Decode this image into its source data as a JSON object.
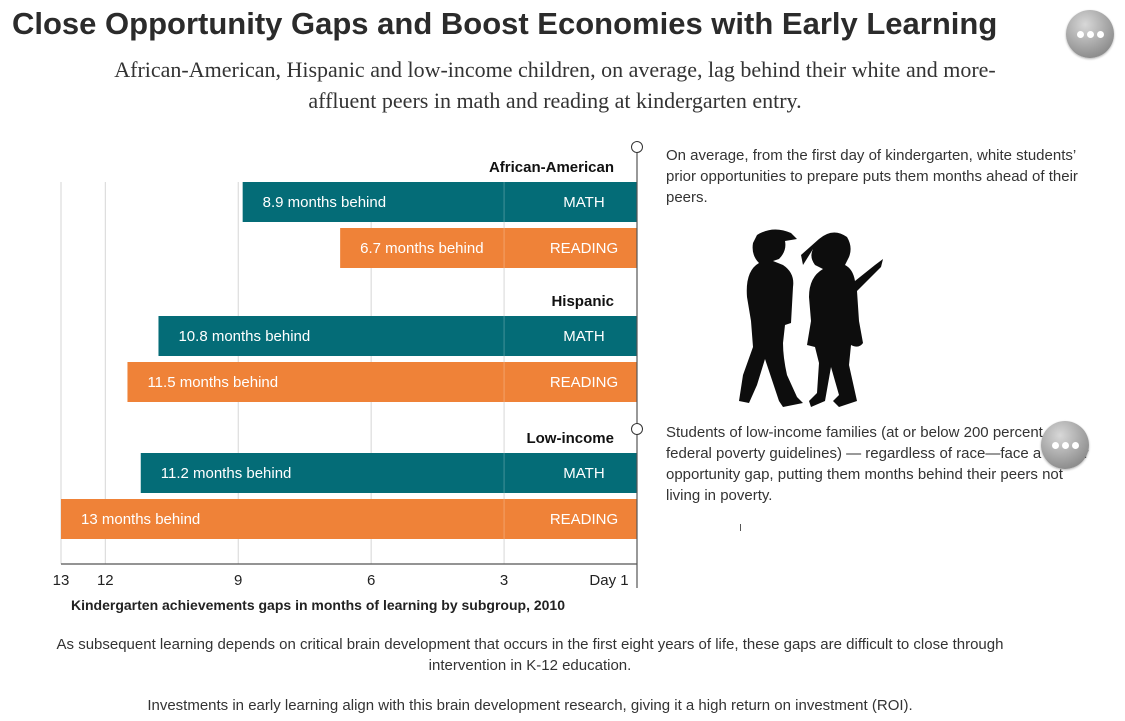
{
  "header": {
    "title": "Close Opportunity Gaps and Boost Economies with Early Learning",
    "subtitle": "African-American, Hispanic and low-income children, on average, lag behind their white and more-affluent peers in math and reading at kindergarten entry."
  },
  "more_icon": "ellipsis-icon",
  "colors": {
    "math": "#046c77",
    "reading": "#ef8238",
    "grid": "#d6d6d6",
    "axis": "#555555"
  },
  "chart_data": {
    "type": "bar",
    "orientation": "horizontal",
    "x_direction": "reversed",
    "title": "Kindergarten achievements gaps in months of learning by subgroup, 2010",
    "xlim": [
      0,
      13
    ],
    "x_ticks": [
      {
        "value": 13,
        "label": "13"
      },
      {
        "value": 12,
        "label": "12"
      },
      {
        "value": 9,
        "label": "9"
      },
      {
        "value": 6,
        "label": "6"
      },
      {
        "value": 3,
        "label": "3"
      },
      {
        "value": 0,
        "label": "Day 1"
      }
    ],
    "grid": true,
    "groups": [
      {
        "name": "African-American",
        "bars": [
          {
            "subject": "MATH",
            "value": 8.9,
            "label": "8.9 months behind"
          },
          {
            "subject": "READING",
            "value": 6.7,
            "label": "6.7 months behind"
          }
        ]
      },
      {
        "name": "Hispanic",
        "bars": [
          {
            "subject": "MATH",
            "value": 10.8,
            "label": "10.8 months behind"
          },
          {
            "subject": "READING",
            "value": 11.5,
            "label": "11.5 months behind"
          }
        ]
      },
      {
        "name": "Low-income",
        "bars": [
          {
            "subject": "MATH",
            "value": 11.2,
            "label": "11.2 months behind"
          },
          {
            "subject": "READING",
            "value": 13,
            "label": "13 months behind"
          }
        ]
      }
    ]
  },
  "notes": {
    "first": "On average, from the first day of kindergarten, white students’ prior opportunities to prepare puts them months ahead of their peers.",
    "second": "Students of low-income families (at or below 200 percent of the federal poverty guidelines) — regardless of race—face a similar opportunity gap, putting them months behind their peers not living in poverty."
  },
  "illustration": "children-walking-silhouette-icon",
  "footer": {
    "line1": "As subsequent learning depends on critical brain development that occurs in the first eight years of life, these gaps are difficult to close through intervention in K-12 education.",
    "line2": "Investments in early learning align with this brain development research, giving it a high return on investment (ROI)."
  }
}
